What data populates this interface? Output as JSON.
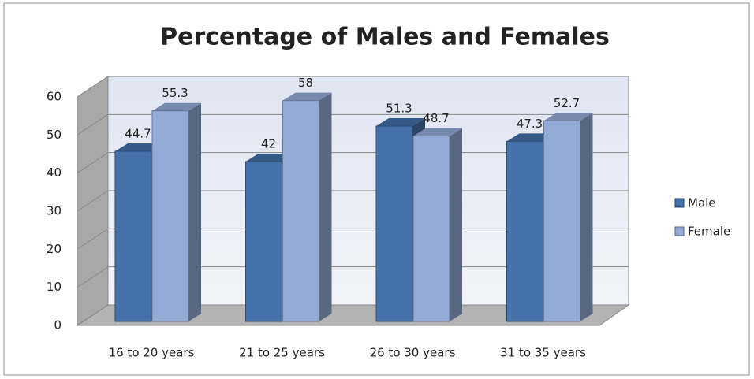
{
  "chart_data": {
    "type": "bar3d",
    "title": "Percentage of Males and Females",
    "categories": [
      "16 to 20 years",
      "21 to 25 years",
      "26 to 30 years",
      "31 to 35 years"
    ],
    "series": [
      {
        "name": "Male",
        "color": "#4471a9",
        "values": [
          44.7,
          42,
          51.3,
          47.3
        ]
      },
      {
        "name": "Female",
        "color": "#95abd7",
        "values": [
          55.3,
          58,
          48.7,
          52.7
        ]
      }
    ],
    "ylim": [
      0,
      60
    ],
    "yticks": [
      0,
      10,
      20,
      30,
      40,
      50,
      60
    ],
    "grid": true,
    "legend": "right"
  }
}
